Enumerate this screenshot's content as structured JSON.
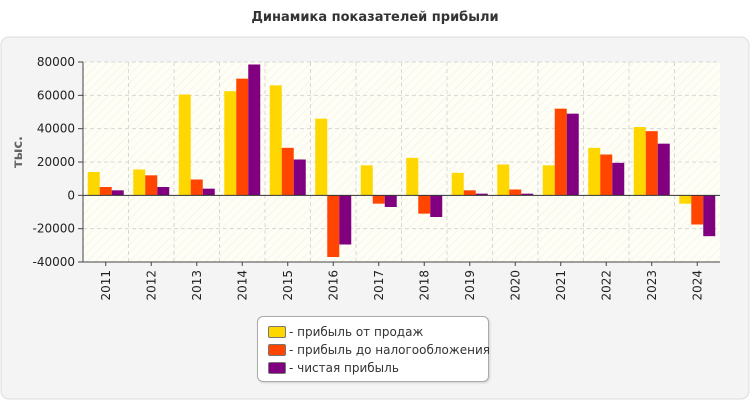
{
  "chart_data": {
    "type": "bar",
    "title": "Динамика показателей прибыли",
    "ylabel": "тыс.",
    "xlabel": "",
    "ylim": [
      -40000,
      80000
    ],
    "yticks": [
      80000,
      60000,
      40000,
      20000,
      0,
      -20000,
      -40000
    ],
    "grid": true,
    "legend_position": "bottom-center",
    "categories": [
      "2011",
      "2012",
      "2013",
      "2014",
      "2015",
      "2016",
      "2017",
      "2018",
      "2019",
      "2020",
      "2021",
      "2022",
      "2023",
      "2024"
    ],
    "series": [
      {
        "name": "- прибыль от продаж",
        "color": "#FFD700",
        "values": [
          14000,
          15500,
          60500,
          62500,
          66000,
          46000,
          18000,
          22500,
          13500,
          18500,
          18000,
          28500,
          41000,
          -5000
        ]
      },
      {
        "name": "- прибыль до налогообложения",
        "color": "#FF4500",
        "values": [
          5000,
          12000,
          9500,
          70000,
          28500,
          -37000,
          -5000,
          -11000,
          3000,
          3500,
          52000,
          24500,
          38500,
          -17500
        ]
      },
      {
        "name": "- чистая прибыль",
        "color": "#800080",
        "values": [
          3000,
          5000,
          4000,
          78500,
          21500,
          -29500,
          -7000,
          -13000,
          1000,
          1000,
          49000,
          19500,
          31000,
          -24500
        ]
      }
    ]
  }
}
